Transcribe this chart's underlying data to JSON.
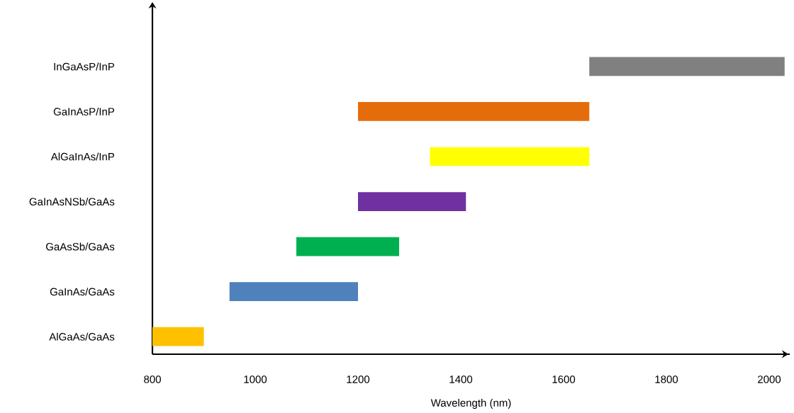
{
  "chart_data": {
    "type": "bar",
    "orientation": "horizontal",
    "xlabel": "Wavelength (nm)",
    "categories": [
      "InGaAsP/InP",
      "GaInAsP/InP",
      "AlGaInAs/InP",
      "GaInAsNSb/GaAs",
      "GaAsSb/GaAs",
      "GaInAs/GaAs",
      "AlGaAs/GaAs"
    ],
    "base": [
      1650,
      1200,
      1340,
      1200,
      1080,
      950,
      800
    ],
    "values": [
      380,
      450,
      310,
      210,
      200,
      250,
      100
    ],
    "colors": [
      "#808080",
      "#e46c0a",
      "#ffff00",
      "#7030a0",
      "#00b050",
      "#4f81bd",
      "#ffc000"
    ],
    "xlim": [
      800,
      2040
    ],
    "xticks": [
      800,
      1000,
      1200,
      1400,
      1600,
      1800,
      2000
    ]
  }
}
